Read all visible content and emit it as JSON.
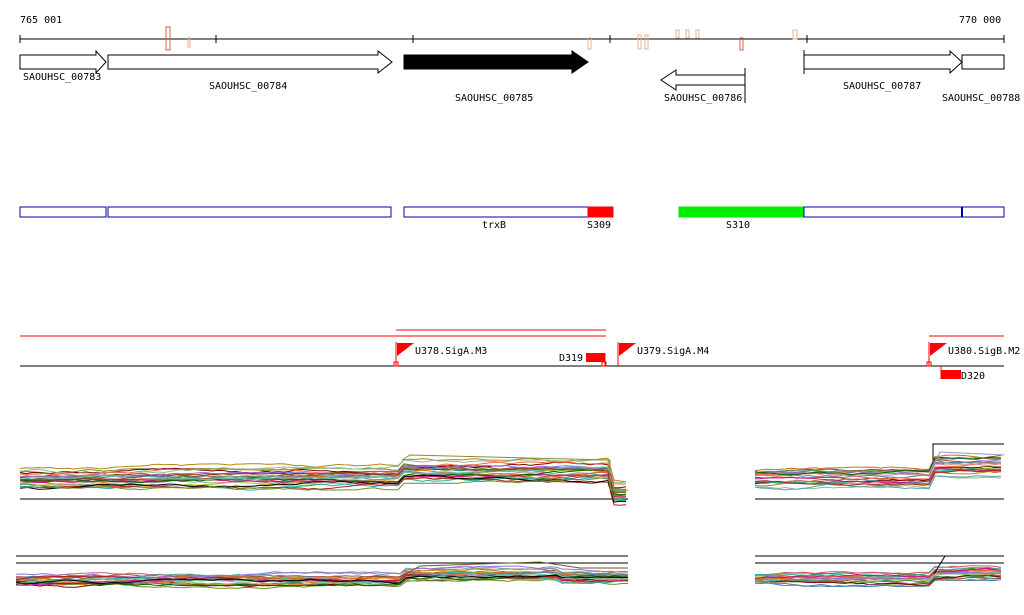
{
  "ruler": {
    "start_label": "765 001",
    "end_label": "770 000"
  },
  "genes": [
    {
      "id": "SAOUHSC_00783",
      "strand": "+",
      "highlight": false
    },
    {
      "id": "SAOUHSC_00784",
      "strand": "+",
      "highlight": false
    },
    {
      "id": "SAOUHSC_00785",
      "strand": "+",
      "highlight": true
    },
    {
      "id": "SAOUHSC_00786",
      "strand": "-",
      "highlight": false
    },
    {
      "id": "SAOUHSC_00787",
      "strand": "+",
      "highlight": false
    },
    {
      "id": "SAOUHSC_00788",
      "strand": "+",
      "highlight": false
    }
  ],
  "annotations": {
    "gene_name": "trxB",
    "segments": [
      {
        "label": "S309",
        "color": "#ff0000"
      },
      {
        "label": "S310",
        "color": "#00ee00"
      }
    ]
  },
  "promoters": [
    {
      "label": "U378.SigA.M3",
      "color": "#ff0000"
    },
    {
      "label": "U379.SigA.M4",
      "color": "#ff0000"
    },
    {
      "label": "U380.SigB.M2",
      "color": "#ff0000"
    }
  ],
  "downshifts": [
    {
      "label": "D319",
      "color": "#ff0000"
    },
    {
      "label": "D320",
      "color": "#ff0000"
    }
  ],
  "colors": {
    "gene_outline": "#000000",
    "annotation_outline": "#0000aa",
    "feature_red": "#ff0000",
    "tick_marker": "#cc6644"
  }
}
